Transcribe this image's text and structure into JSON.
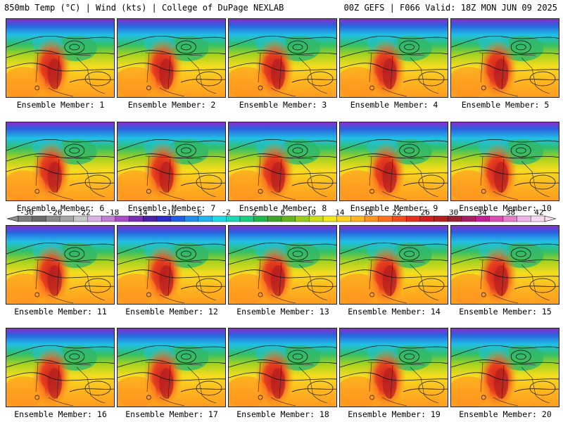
{
  "header": {
    "title": "850mb Temp (°C) | Wind (kts) | College of DuPage NEXLAB",
    "run_info": "00Z GEFS | F066 Valid: 18Z MON JUN 09 2025"
  },
  "member_label_prefix": "Ensemble Member: ",
  "members": [
    "Ensemble Member: 1",
    "Ensemble Member: 2",
    "Ensemble Member: 3",
    "Ensemble Member: 4",
    "Ensemble Member: 5",
    "Ensemble Member: 6",
    "Ensemble Member: 7",
    "Ensemble Member: 8",
    "Ensemble Member: 9",
    "Ensemble Member: 10",
    "Ensemble Member: 11",
    "Ensemble Member: 12",
    "Ensemble Member: 13",
    "Ensemble Member: 14",
    "Ensemble Member: 15",
    "Ensemble Member: 16",
    "Ensemble Member: 17",
    "Ensemble Member: 18",
    "Ensemble Member: 19",
    "Ensemble Member: 20"
  ],
  "colorbar": {
    "tick_labels": [
      "-30",
      "-26",
      "-22",
      "-18",
      "-14",
      "-10",
      "-6",
      "-2",
      "2",
      "6",
      "10",
      "14",
      "18",
      "22",
      "26",
      "30",
      "34",
      "38",
      "42"
    ],
    "colors": [
      "#7f7f7f",
      "#6a6a6a",
      "#8c8c8c",
      "#a6a6a6",
      "#c7c7c7",
      "#d9b3e6",
      "#c27fd6",
      "#a64dc4",
      "#7a2eb3",
      "#4b1fa6",
      "#2b2fc9",
      "#1f5ee6",
      "#1f8ef0",
      "#20b5f0",
      "#20d9e6",
      "#1fd9b3",
      "#1fcc80",
      "#20b84d",
      "#3ca62b",
      "#66b31f",
      "#99cc1f",
      "#ccdd1f",
      "#f2e61f",
      "#ffd21f",
      "#ffb31f",
      "#ff941f",
      "#ff701f",
      "#f24d1f",
      "#e62e1f",
      "#d11f1f",
      "#b31f1f",
      "#991f33",
      "#a61f66",
      "#c21f99",
      "#d94db3",
      "#e680cc",
      "#f0b3e6",
      "#f7d9f0"
    ]
  }
}
